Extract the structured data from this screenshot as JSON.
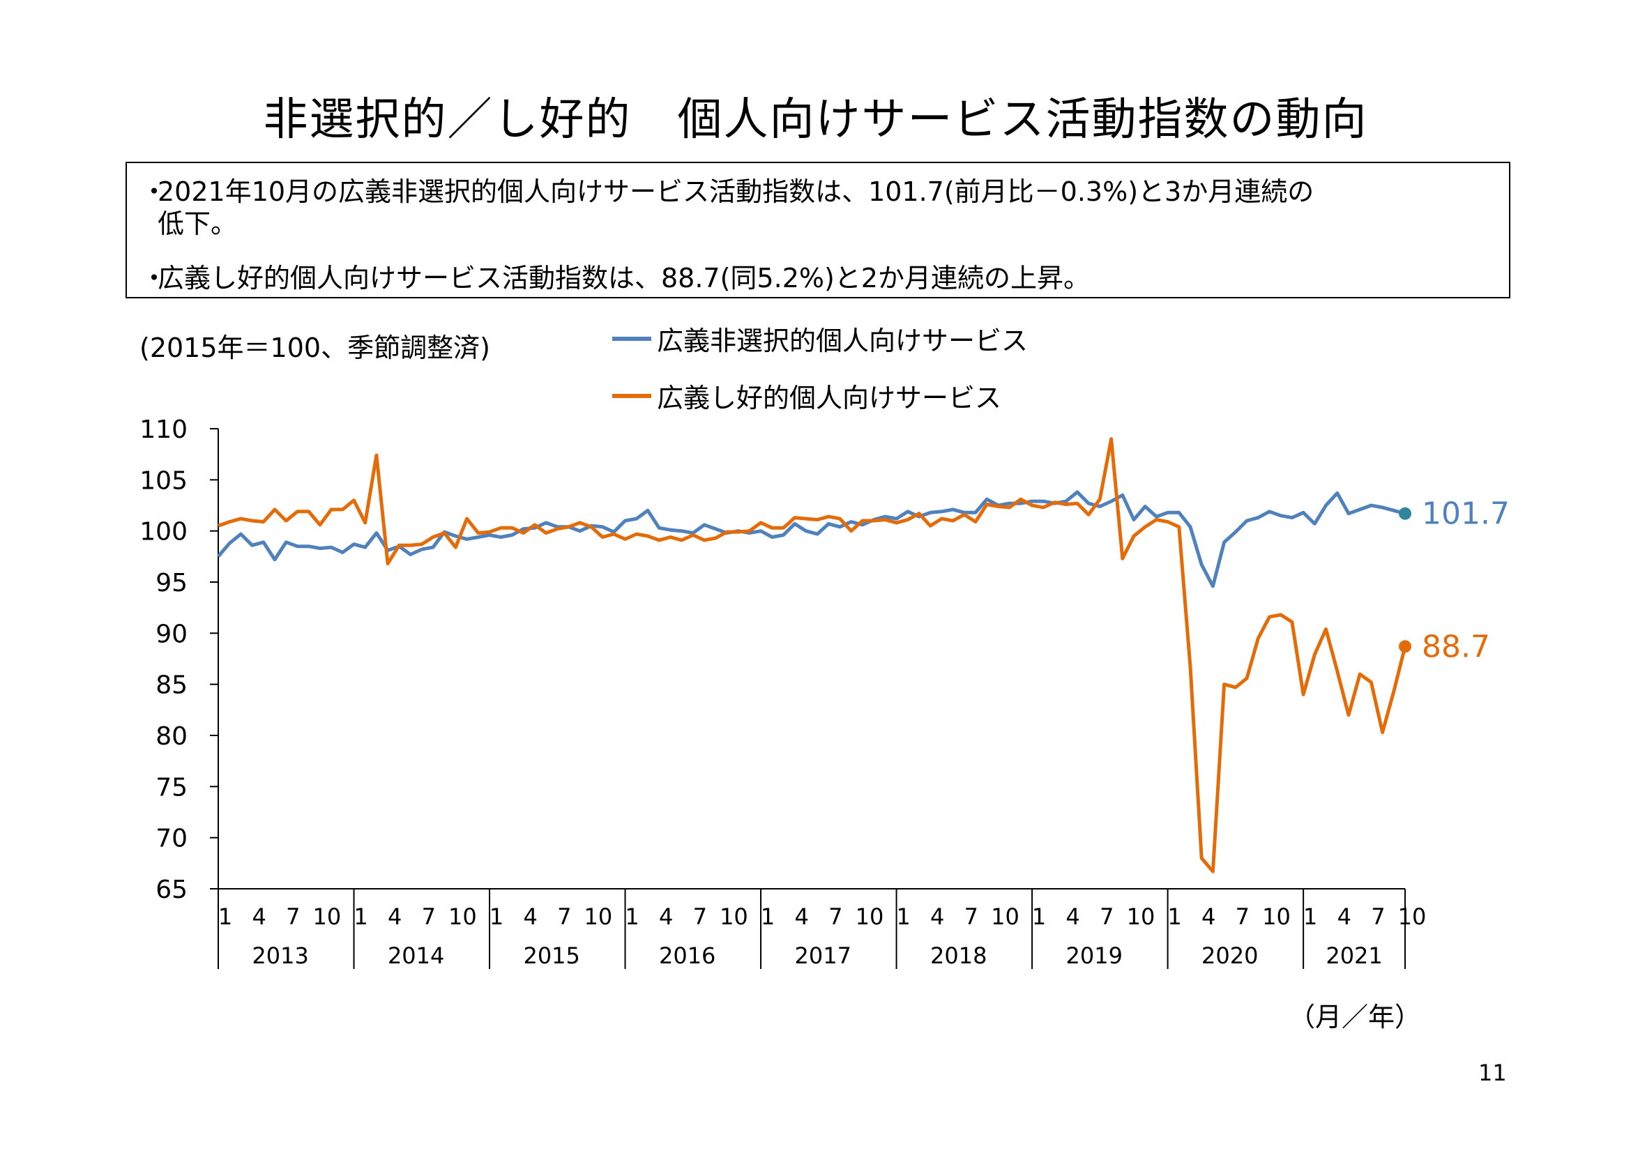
{
  "title": "非選択的／し好的　個人向けサービス活動指数の動向",
  "summary": {
    "bullet1_line1": "2021年10月の広義非選択的個人向けサービス活動指数は、101.7(前月比－0.3%)と3か月連続の",
    "bullet1_line2": "低下。",
    "bullet2": "広義し好的個人向けサービス活動指数は、88.7(同5.2%)と2か月連続の上昇。",
    "bullet_mark": "・"
  },
  "basis_note": "(2015年＝100、季節調整済)",
  "unit_label": "（月／年）",
  "page_number": "11",
  "colors": {
    "blue": "#4f81bd",
    "orange": "#e36c09",
    "end_dot_blue": "#31859c",
    "axis": "#000000"
  },
  "chart_data": {
    "type": "line",
    "ylim": [
      65,
      110
    ],
    "yticks": [
      110,
      105,
      100,
      95,
      90,
      85,
      80,
      75,
      70,
      65
    ],
    "month_tick_labels": [
      "1",
      "4",
      "7",
      "10"
    ],
    "years": [
      "2013",
      "2014",
      "2015",
      "2016",
      "2017",
      "2018",
      "2019",
      "2020",
      "2021"
    ],
    "x_start": "2013-01",
    "x_end": "2021-10",
    "series": [
      {
        "name": "広義非選択的個人向けサービス",
        "color": "#4f81bd",
        "end_label": "101.7",
        "values": [
          97.5,
          98.8,
          99.7,
          98.6,
          98.9,
          97.2,
          98.9,
          98.5,
          98.5,
          98.3,
          98.4,
          97.9,
          98.7,
          98.4,
          99.8,
          98.1,
          98.5,
          97.7,
          98.2,
          98.4,
          99.9,
          99.5,
          99.2,
          99.4,
          99.6,
          99.4,
          99.6,
          100.2,
          100.3,
          100.8,
          100.4,
          100.4,
          100.0,
          100.5,
          100.4,
          99.9,
          101.0,
          101.2,
          102.0,
          100.3,
          100.1,
          100.0,
          99.8,
          100.6,
          100.2,
          99.8,
          100.0,
          99.8,
          100.0,
          99.4,
          99.6,
          100.7,
          100.0,
          99.7,
          100.7,
          100.4,
          100.9,
          100.6,
          101.1,
          101.4,
          101.2,
          101.9,
          101.4,
          101.8,
          101.9,
          102.1,
          101.8,
          101.8,
          103.1,
          102.5,
          102.7,
          102.7,
          102.9,
          102.9,
          102.7,
          102.9,
          103.8,
          102.7,
          102.4,
          102.9,
          103.5,
          101.1,
          102.4,
          101.4,
          101.8,
          101.8,
          100.4,
          96.7,
          94.6,
          98.9,
          99.9,
          101.0,
          101.3,
          101.9,
          101.5,
          101.3,
          101.8,
          100.7,
          102.5,
          103.7,
          101.7,
          102.1,
          102.5,
          102.3,
          102.0,
          101.7
        ]
      },
      {
        "name": "広義し好的個人向けサービス",
        "color": "#e36c09",
        "end_label": "88.7",
        "values": [
          100.5,
          100.9,
          101.2,
          101.0,
          100.9,
          102.1,
          101.0,
          101.9,
          101.9,
          100.6,
          102.1,
          102.1,
          103.0,
          100.8,
          107.4,
          96.8,
          98.6,
          98.6,
          98.7,
          99.4,
          99.8,
          98.4,
          101.2,
          99.8,
          99.9,
          100.3,
          100.3,
          99.8,
          100.6,
          99.8,
          100.2,
          100.4,
          100.8,
          100.4,
          99.4,
          99.7,
          99.2,
          99.7,
          99.5,
          99.1,
          99.4,
          99.1,
          99.6,
          99.1,
          99.3,
          99.9,
          99.9,
          100.0,
          100.8,
          100.3,
          100.3,
          101.3,
          101.2,
          101.1,
          101.4,
          101.2,
          100.0,
          101.0,
          101.0,
          101.1,
          100.8,
          101.1,
          101.7,
          100.5,
          101.2,
          101.0,
          101.6,
          100.9,
          102.6,
          102.4,
          102.3,
          103.1,
          102.5,
          102.3,
          102.8,
          102.6,
          102.7,
          101.6,
          103.1,
          109.0,
          97.3,
          99.5,
          100.4,
          101.1,
          100.9,
          100.4,
          86.7,
          68.0,
          66.7,
          85.0,
          84.7,
          85.6,
          89.5,
          91.6,
          91.8,
          91.1,
          84.0,
          87.9,
          90.4,
          86.3,
          82.0,
          86.0,
          85.2,
          80.3,
          84.3,
          88.7
        ]
      }
    ]
  }
}
